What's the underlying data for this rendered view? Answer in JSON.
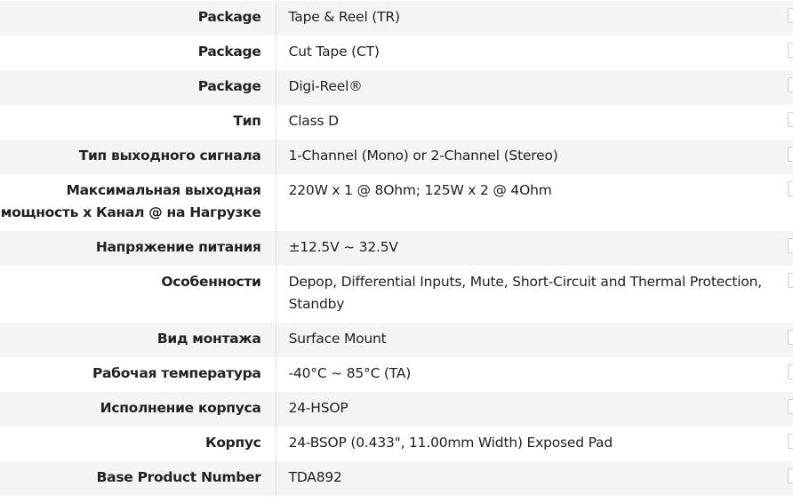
{
  "rows": [
    {
      "label": "Package",
      "value": "Tape & Reel (TR)"
    },
    {
      "label": "Package",
      "value": "Cut Tape (CT)"
    },
    {
      "label": "Package",
      "value": "Digi-Reel®"
    },
    {
      "label": "Тип",
      "value": "Class D"
    },
    {
      "label": "Тип выходного сигнала",
      "value": "1-Channel (Mono) or 2-Channel (Stereo)"
    },
    {
      "label": "Максимальная выходная мощность x Канал @ на Нагрузке",
      "value": "220W x 1 @ 8Ohm; 125W x 2 @ 4Ohm"
    },
    {
      "label": "Напряжение питания",
      "value": "±12.5V ~ 32.5V"
    },
    {
      "label": "Особенности",
      "value": "Depop, Differential Inputs, Mute, Short-Circuit and Thermal Protection, Standby"
    },
    {
      "label": "Вид монтажа",
      "value": "Surface Mount"
    },
    {
      "label": "Рабочая температура",
      "value": "-40°C ~ 85°C (TA)"
    },
    {
      "label": "Исполнение корпуса",
      "value": "24-HSOP"
    },
    {
      "label": "Корпус",
      "value": "24-BSOP (0.433\", 11.00mm Width) Exposed Pad"
    },
    {
      "label": "Base Product Number",
      "value": "TDA892"
    }
  ]
}
